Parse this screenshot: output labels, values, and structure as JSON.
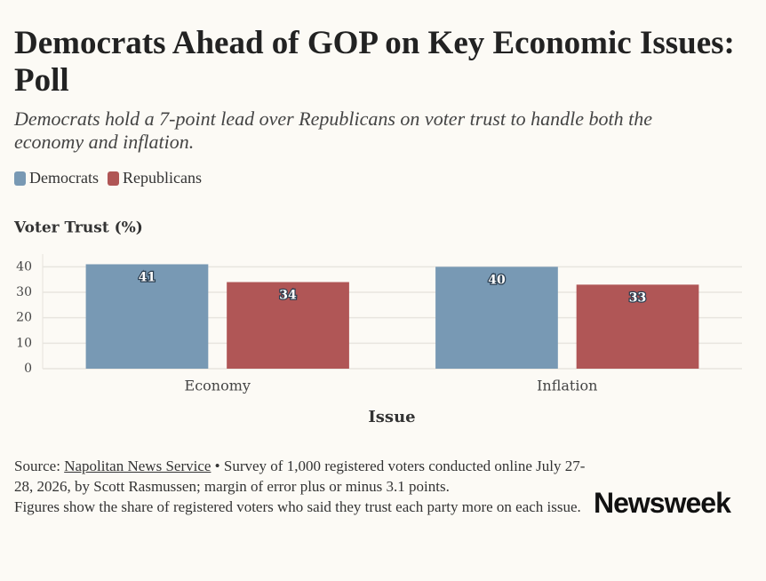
{
  "chart_data": {
    "type": "bar",
    "title": "Democrats Ahead of GOP on Key Economic Issues: Poll",
    "subtitle": "Democrats hold a 7-point lead over Republicans on voter trust to handle both the economy and inflation.",
    "y_label": "Voter Trust (%)",
    "x_label": "Issue",
    "categories": [
      "Economy",
      "Inflation"
    ],
    "series": [
      {
        "name": "Democrats",
        "color": "#7899b4",
        "values": [
          41,
          40
        ]
      },
      {
        "name": "Republicans",
        "color": "#b05656",
        "values": [
          34,
          33
        ]
      }
    ],
    "ylim": [
      0,
      45
    ],
    "yticks": [
      0,
      10,
      20,
      30,
      40
    ],
    "grid": true,
    "source_prefix": "Source:",
    "source_name": "Napolitan News Service",
    "source_text": "• Survey of 1,000 registered voters conducted online July 27-28, 2026, by Scott Rasmussen; margin of error plus or minus 3.1 points.",
    "note": "Figures show the share of registered voters who said they trust each party more on each issue.",
    "logo": "Newsweek"
  }
}
